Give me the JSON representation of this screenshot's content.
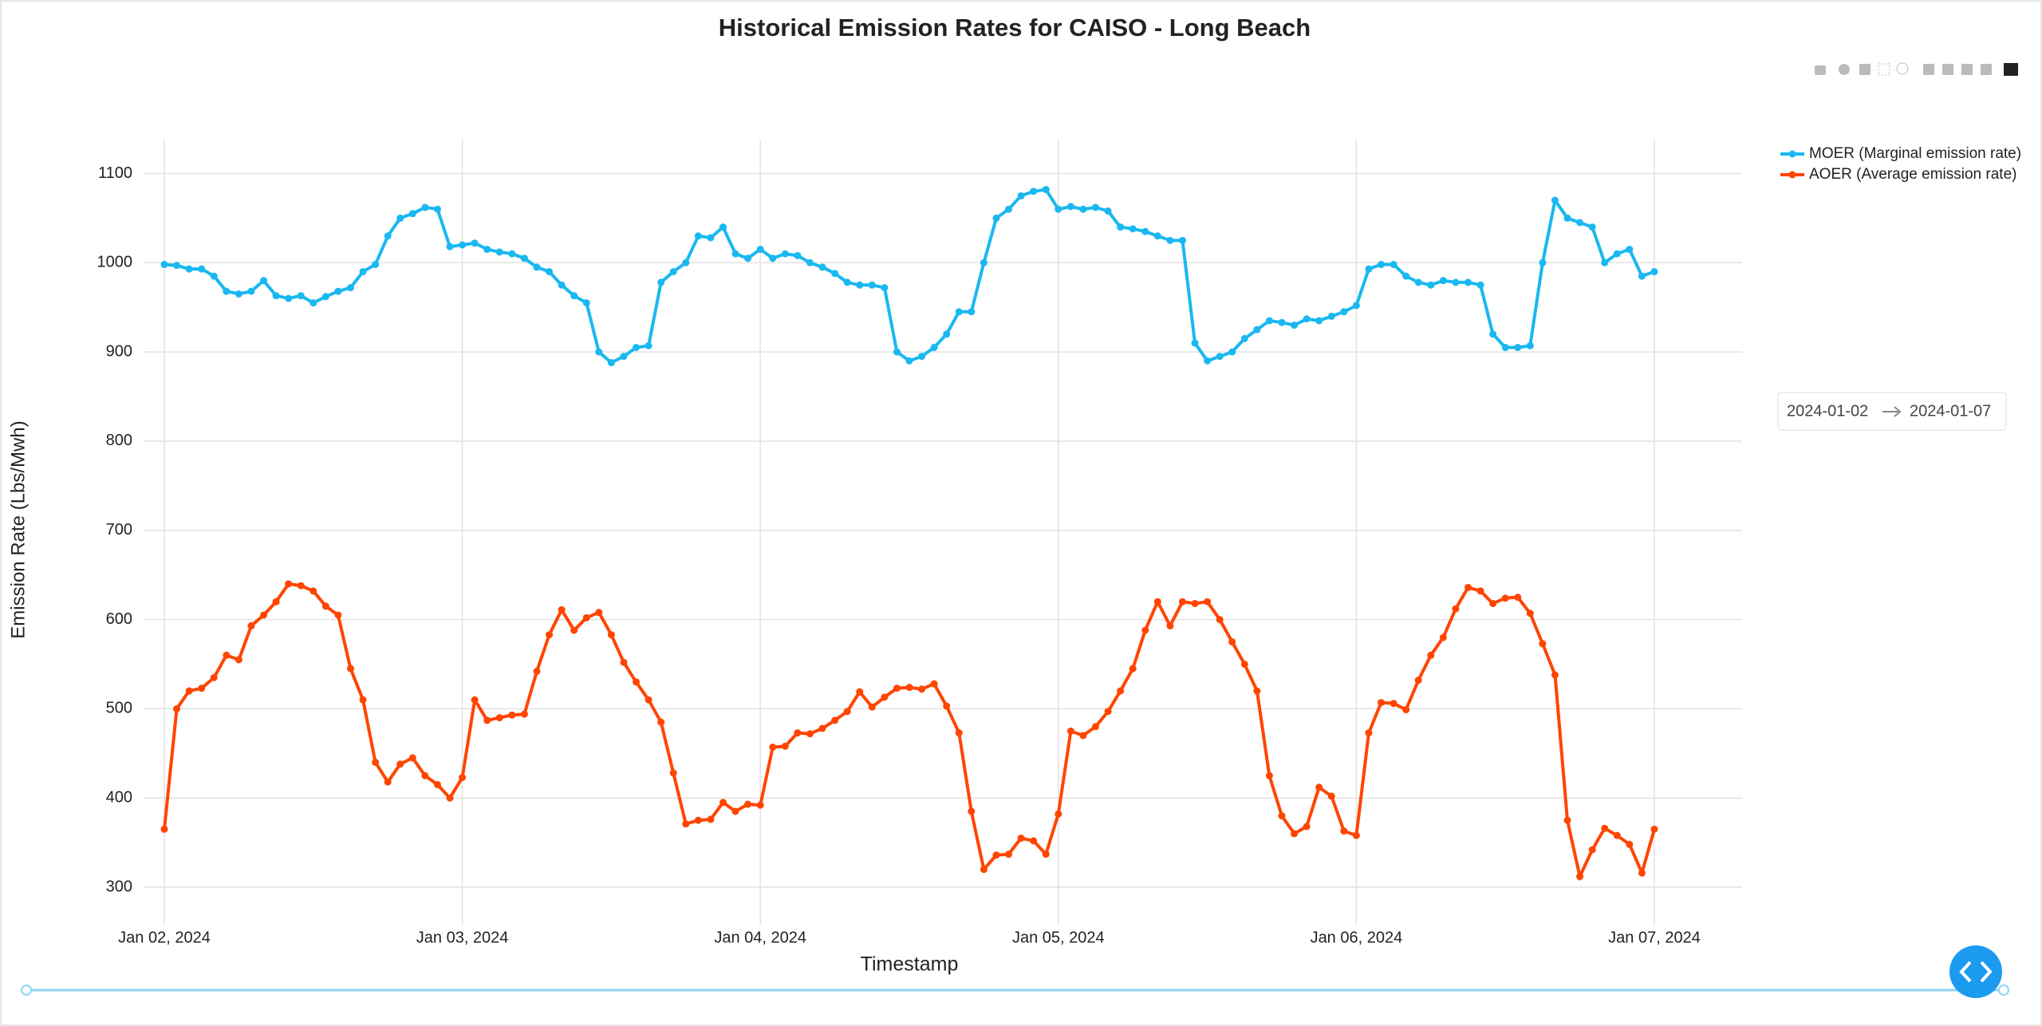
{
  "chart_data": {
    "type": "line",
    "title": "Historical Emission Rates for CAISO - Long Beach",
    "x_label": "Timestamp",
    "y_label": "Emission Rate (Lbs/Mwh)",
    "xlim": [
      "2024-01-02",
      "2024-01-07"
    ],
    "xticks": [
      {
        "value": "2024-01-02",
        "label": "Jan 02, 2024"
      },
      {
        "value": "2024-01-03",
        "label": "Jan 03, 2024"
      },
      {
        "value": "2024-01-04",
        "label": "Jan 04, 2024"
      },
      {
        "value": "2024-01-05",
        "label": "Jan 05, 2024"
      },
      {
        "value": "2024-01-06",
        "label": "Jan 06, 2024"
      },
      {
        "value": "2024-01-07",
        "label": "Jan 07, 2024"
      }
    ],
    "ylim": [
      258,
      1138
    ],
    "yticks": [
      300,
      400,
      500,
      600,
      700,
      800,
      900,
      1000,
      1100
    ],
    "grid": true,
    "legend": "top-right",
    "series": [
      {
        "name": "MOER (Marginal emission rate)",
        "color": "#1ab8f0",
        "values": [
          998,
          997,
          993,
          993,
          985,
          968,
          965,
          968,
          980,
          963,
          960,
          963,
          955,
          962,
          968,
          972,
          990,
          998,
          1030,
          1050,
          1055,
          1062,
          1060,
          1018,
          1020,
          1022,
          1015,
          1012,
          1010,
          1005,
          995,
          990,
          975,
          963,
          955,
          900,
          888,
          895,
          905,
          907,
          978,
          990,
          1000,
          1030,
          1028,
          1040,
          1010,
          1005,
          1015,
          1005,
          1010,
          1008,
          1000,
          995,
          988,
          978,
          975,
          975,
          972,
          900,
          890,
          895,
          905,
          920,
          945,
          945,
          1000,
          1050,
          1060,
          1075,
          1080,
          1082,
          1060,
          1063,
          1060,
          1062,
          1058,
          1040,
          1038,
          1035,
          1030,
          1025,
          1025,
          910,
          890,
          895,
          900,
          915,
          925,
          935,
          933,
          930,
          937,
          935,
          940,
          945,
          952,
          993,
          998,
          998,
          985,
          978,
          975,
          980,
          978,
          978,
          975,
          920,
          905,
          905,
          907,
          1000,
          1070,
          1050,
          1045,
          1040,
          1000,
          1010,
          1015,
          985,
          990
        ]
      },
      {
        "name": "AOER (Average emission rate)",
        "color": "#ff4500",
        "values": [
          365,
          500,
          520,
          523,
          535,
          560,
          555,
          593,
          605,
          620,
          640,
          638,
          632,
          615,
          605,
          545,
          510,
          440,
          418,
          438,
          445,
          425,
          415,
          400,
          423,
          510,
          487,
          490,
          493,
          494,
          542,
          583,
          611,
          588,
          602,
          608,
          583,
          552,
          530,
          510,
          485,
          428,
          371,
          375,
          376,
          395,
          385,
          393,
          392,
          457,
          458,
          473,
          472,
          478,
          487,
          497,
          519,
          502,
          513,
          523,
          524,
          522,
          528,
          503,
          473,
          385,
          320,
          336,
          337,
          355,
          352,
          337,
          382,
          475,
          470,
          480,
          497,
          520,
          545,
          588,
          620,
          593,
          620,
          618,
          620,
          600,
          575,
          550,
          520,
          425,
          380,
          360,
          368,
          412,
          402,
          363,
          358,
          473,
          507,
          506,
          499,
          532,
          560,
          580,
          612,
          636,
          632,
          618,
          624,
          625,
          607,
          573,
          538,
          375,
          312,
          342,
          366,
          358,
          348,
          316,
          365
        ]
      }
    ]
  },
  "range_picker": {
    "start": "2024-01-02",
    "end": "2024-01-07"
  }
}
